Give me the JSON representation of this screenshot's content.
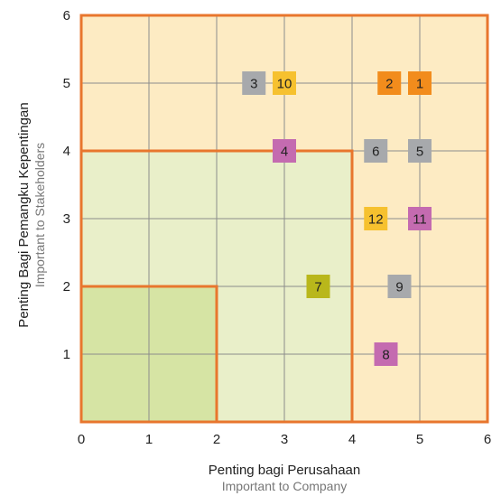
{
  "chart_data": {
    "type": "scatter",
    "xlabel": "Penting bagi Perusahaan",
    "xlabel_sub": "Important to Company",
    "ylabel": "Penting Bagi Pemangku Kepentingan",
    "ylabel_sub": "Important to Stakeholders",
    "xlim": [
      0,
      6
    ],
    "ylim": [
      0,
      6
    ],
    "xticks": [
      "0",
      "1",
      "2",
      "3",
      "4",
      "5",
      "6"
    ],
    "yticks": [
      "1",
      "2",
      "3",
      "4",
      "5",
      "6"
    ],
    "grid": true,
    "zones": [
      {
        "x": [
          0,
          6
        ],
        "y": [
          0,
          6
        ],
        "color": "#fdebc3"
      },
      {
        "x": [
          0,
          4
        ],
        "y": [
          0,
          4
        ],
        "color": "#e9efc9"
      },
      {
        "x": [
          0,
          2
        ],
        "y": [
          0,
          2
        ],
        "color": "#d6e4a4"
      }
    ],
    "points": [
      {
        "label": "1",
        "x": 5.0,
        "y": 5.0,
        "color": "#f28c1c"
      },
      {
        "label": "2",
        "x": 4.55,
        "y": 5.0,
        "color": "#f28c1c"
      },
      {
        "label": "3",
        "x": 2.55,
        "y": 5.0,
        "color": "#a7a9ac"
      },
      {
        "label": "10",
        "x": 3.0,
        "y": 5.0,
        "color": "#f6c12f"
      },
      {
        "label": "4",
        "x": 3.0,
        "y": 4.0,
        "color": "#c46bb0"
      },
      {
        "label": "6",
        "x": 4.35,
        "y": 4.0,
        "color": "#a7a9ac"
      },
      {
        "label": "5",
        "x": 5.0,
        "y": 4.0,
        "color": "#a7a9ac"
      },
      {
        "label": "12",
        "x": 4.35,
        "y": 3.0,
        "color": "#f6c12f"
      },
      {
        "label": "11",
        "x": 5.0,
        "y": 3.0,
        "color": "#c46bb0"
      },
      {
        "label": "7",
        "x": 3.5,
        "y": 2.0,
        "color": "#b9b71b"
      },
      {
        "label": "9",
        "x": 4.7,
        "y": 2.0,
        "color": "#a7a9ac"
      },
      {
        "label": "8",
        "x": 4.5,
        "y": 1.0,
        "color": "#c46bb0"
      }
    ]
  }
}
